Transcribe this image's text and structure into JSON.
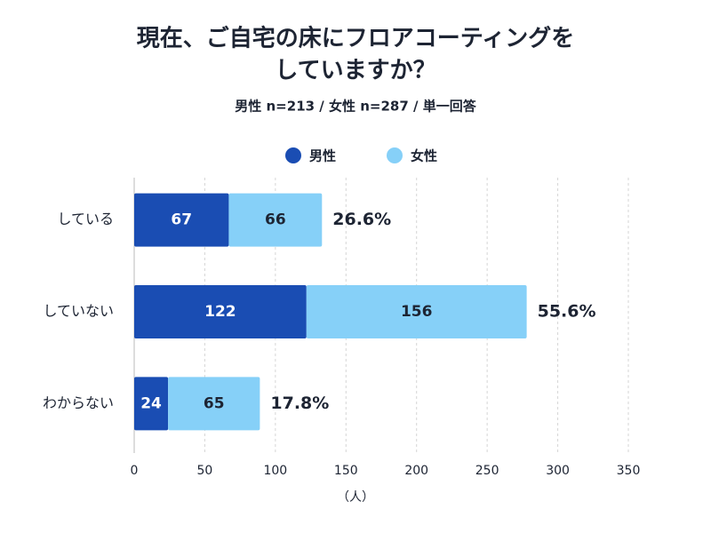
{
  "chart_data": {
    "type": "stacked-bar-horizontal",
    "title": [
      "現在、ご自宅の床にフロアコーティングを",
      "していますか？"
    ],
    "subtitle": "男性 n=213 / 女性 n=287 / 単一回答",
    "x_label": "（人）",
    "categories": [
      "している",
      "していない",
      "わからない"
    ],
    "series": [
      {
        "name": "男性",
        "color": "#1a4db3",
        "values": [
          67,
          122,
          24
        ]
      },
      {
        "name": "女性",
        "color": "#86d0f8",
        "values": [
          66,
          156,
          65
        ]
      }
    ],
    "share": {
      "values": [
        26.6,
        55.6,
        17.8
      ],
      "value_labels": [
        "26.6%",
        "55.6%",
        "17.8%"
      ]
    },
    "xlim": [
      0,
      350
    ],
    "xticks": [
      0,
      50,
      100,
      150,
      200,
      250,
      300,
      350
    ],
    "grid": true,
    "legend": "top"
  }
}
